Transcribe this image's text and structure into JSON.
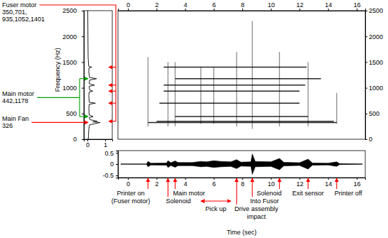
{
  "chart_data": [
    {
      "type": "line",
      "orientation": "horizontal",
      "ylabel": "Frequency (Hz)",
      "color": "#000000",
      "frequency": [
        0,
        100,
        200,
        280,
        326,
        338,
        350,
        380,
        420,
        442,
        470,
        600,
        680,
        701,
        720,
        850,
        920,
        935,
        960,
        1030,
        1052,
        1080,
        1150,
        1178,
        1200,
        1300,
        1385,
        1401,
        1420,
        1600,
        2000,
        2500
      ],
      "values": [
        0.05,
        0.06,
        0.08,
        0.12,
        0.72,
        0.3,
        0.55,
        0.15,
        0.1,
        0.32,
        0.1,
        0.08,
        0.1,
        0.45,
        0.1,
        0.08,
        0.1,
        0.3,
        0.12,
        0.1,
        0.4,
        0.1,
        0.12,
        0.52,
        0.12,
        0.08,
        0.08,
        0.25,
        0.07,
        0.04,
        0.03,
        0.02
      ],
      "xlim": [
        -0.2,
        1.4
      ],
      "xticks": [
        0,
        1
      ],
      "ylim": [
        0,
        2500
      ],
      "yticks": [
        0,
        500,
        1000,
        1500,
        2000,
        2500
      ],
      "annotations": [
        {
          "text": [
            "Fuser motor",
            "350,701,",
            "935,1052,1401"
          ],
          "frequencies": [
            350,
            701,
            935,
            1052,
            1401
          ],
          "color": "#ff0000"
        },
        {
          "text": [
            "Main motor",
            "442,1178"
          ],
          "frequencies": [
            442,
            1178
          ],
          "color": "#00a000"
        },
        {
          "text": [
            "Main Fan",
            "326"
          ],
          "frequencies": [
            326
          ],
          "color": "#ff0000"
        }
      ]
    },
    {
      "type": "spectrogram",
      "color": "#000000",
      "xlim": [
        -0.7,
        16.6
      ],
      "xticks": [
        0,
        2,
        4,
        6,
        8,
        10,
        12,
        14,
        16
      ],
      "ylim": [
        0,
        2500
      ],
      "yticks": [
        0,
        500,
        1000,
        1500,
        2000,
        2500
      ],
      "lines": [
        {
          "frequency": 326,
          "start": 1.4,
          "end": 14.6
        },
        {
          "frequency": 350,
          "start": 2.0,
          "end": 14.4
        },
        {
          "frequency": 442,
          "start": 3.3,
          "end": 12.6
        },
        {
          "frequency": 701,
          "start": 2.2,
          "end": 12.0
        },
        {
          "frequency": 935,
          "start": 2.5,
          "end": 12.0
        },
        {
          "frequency": 1052,
          "start": 2.5,
          "end": 12.4
        },
        {
          "frequency": 1178,
          "start": 3.3,
          "end": 13.5
        },
        {
          "frequency": 1401,
          "start": 2.5,
          "end": 12.5
        }
      ],
      "transients": [
        {
          "time": 1.4,
          "low": 250,
          "high": 1600
        },
        {
          "time": 2.8,
          "low": 250,
          "high": 1500
        },
        {
          "time": 3.3,
          "low": 250,
          "high": 1500
        },
        {
          "time": 5.1,
          "low": 300,
          "high": 1400
        },
        {
          "time": 6.0,
          "low": 300,
          "high": 1400
        },
        {
          "time": 7.6,
          "low": 250,
          "high": 1700
        },
        {
          "time": 8.7,
          "low": 200,
          "high": 2300
        },
        {
          "time": 10.6,
          "low": 250,
          "high": 1700
        },
        {
          "time": 12.6,
          "low": 250,
          "high": 1500
        },
        {
          "time": 14.6,
          "low": 300,
          "high": 900
        }
      ]
    },
    {
      "type": "area",
      "xlabel": "Time (sec)",
      "color": "#000000",
      "time": [
        -0.5,
        1.3,
        1.4,
        1.6,
        2.7,
        2.8,
        3.0,
        3.3,
        3.5,
        4.5,
        5.1,
        5.5,
        6.0,
        6.5,
        7.2,
        7.6,
        7.9,
        8.6,
        8.7,
        8.9,
        10.0,
        10.6,
        10.9,
        12.0,
        12.6,
        12.9,
        14.0,
        14.6,
        14.8,
        16.4
      ],
      "values": [
        0.01,
        0.01,
        0.12,
        0.04,
        0.05,
        0.15,
        0.06,
        0.14,
        0.07,
        0.07,
        0.12,
        0.1,
        0.15,
        0.12,
        0.1,
        0.2,
        0.09,
        0.1,
        0.45,
        0.12,
        0.1,
        0.25,
        0.08,
        0.06,
        0.22,
        0.05,
        0.04,
        0.1,
        0.02,
        0.01
      ],
      "xlim": [
        -0.7,
        16.6
      ],
      "xticks": [
        0,
        2,
        4,
        6,
        8,
        10,
        12,
        14,
        16
      ],
      "ylim": [
        -0.6,
        0.6
      ],
      "yticks": [
        -0.5,
        0,
        0.5
      ],
      "annotations": [
        {
          "text": [
            "Printer on",
            "(Fuser motor)"
          ],
          "time": 1.4,
          "color": "#ff0000"
        },
        {
          "text": [
            "Main motor"
          ],
          "time": 3.3,
          "color": "#ff0000"
        },
        {
          "text": [
            "Solenoid"
          ],
          "time": 2.8,
          "color": "#ff0000"
        },
        {
          "text": [
            "Pick up"
          ],
          "time": [
            5.1,
            7.2
          ],
          "color": "#ff0000"
        },
        {
          "text": [
            "Drive assembly",
            "impact"
          ],
          "time": 7.6,
          "color": "#ff0000"
        },
        {
          "text": [
            "Into Fusor"
          ],
          "time": 8.7,
          "color": "#ff0000"
        },
        {
          "text": [
            "Solenoid"
          ],
          "time": 10.6,
          "color": "#ff0000"
        },
        {
          "text": [
            "Exit sensor"
          ],
          "time": 12.6,
          "color": "#ff0000"
        },
        {
          "text": [
            "Printer off"
          ],
          "time": 14.6,
          "color": "#ff0000"
        }
      ]
    }
  ]
}
